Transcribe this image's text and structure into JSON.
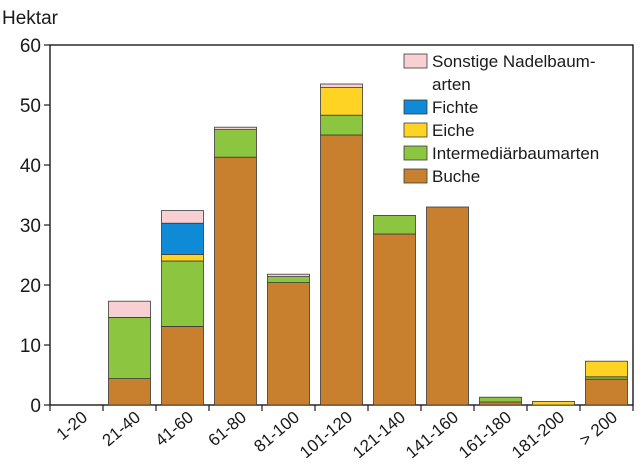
{
  "chart_data": {
    "type": "bar",
    "stacked": true,
    "ylabel": "Hektar",
    "xlabel": "",
    "ylim": [
      0,
      60
    ],
    "yticks": [
      0,
      10,
      20,
      30,
      40,
      50,
      60
    ],
    "grid": false,
    "legend_position": "top-right",
    "categories": [
      "1-20",
      "21-40",
      "41-60",
      "61-80",
      "81-100",
      "101-120",
      "121-140",
      "141-160",
      "161-180",
      "181-200",
      "> 200"
    ],
    "series": [
      {
        "name": "Buche",
        "color": "#c8802e",
        "values": [
          0,
          4.4,
          13.1,
          41.3,
          20.4,
          45.0,
          28.5,
          33.0,
          0.5,
          0,
          4.3
        ]
      },
      {
        "name": "Intermediärbaumarten",
        "color": "#8cc540",
        "values": [
          0,
          10.2,
          10.9,
          4.6,
          1.0,
          3.3,
          3.1,
          0,
          0.8,
          0,
          0.4
        ]
      },
      {
        "name": "Eiche",
        "color": "#ffd324",
        "values": [
          0,
          0,
          1.1,
          0,
          0,
          4.6,
          0,
          0,
          0,
          0.6,
          2.6
        ]
      },
      {
        "name": "Fichte",
        "color": "#0e8ad6",
        "values": [
          0,
          0,
          5.2,
          0,
          0,
          0,
          0,
          0,
          0,
          0,
          0
        ]
      },
      {
        "name": "Sonstige Nadelbaumarten",
        "color": "#f8d0d3",
        "values": [
          0,
          2.7,
          2.1,
          0.4,
          0.4,
          0.6,
          0,
          0,
          0,
          0,
          0
        ]
      }
    ],
    "legend": [
      {
        "series": "Sonstige Nadelbaumarten",
        "lines": [
          "Sonstige Nadelbaum-",
          "arten"
        ],
        "color": "#f8d0d3"
      },
      {
        "series": "Fichte",
        "lines": [
          "Fichte"
        ],
        "color": "#0e8ad6"
      },
      {
        "series": "Eiche",
        "lines": [
          "Eiche"
        ],
        "color": "#ffd324"
      },
      {
        "series": "Intermediärbaumarten",
        "lines": [
          "Intermediärbaumarten"
        ],
        "color": "#8cc540"
      },
      {
        "series": "Buche",
        "lines": [
          "Buche"
        ],
        "color": "#c8802e"
      }
    ]
  }
}
